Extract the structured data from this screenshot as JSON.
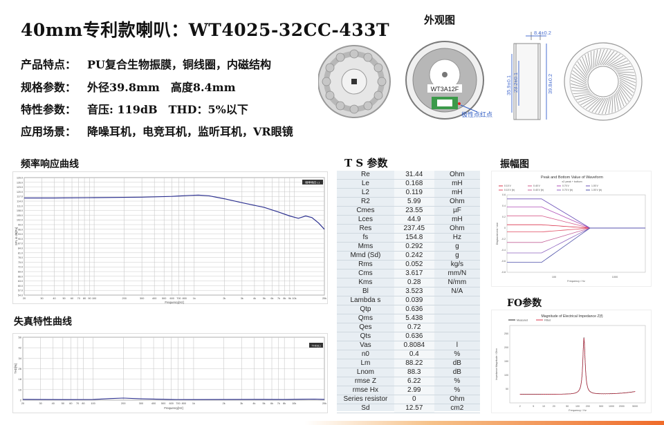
{
  "title": "40mm专利款喇叭：WT4025-32CC-433T",
  "specs": [
    {
      "key": "产品特点：",
      "value": "PU复合生物振膜，铜线圈，内磁结构"
    },
    {
      "key": "规格参数：",
      "value": "外径39.8mm　高度8.4mm"
    },
    {
      "key": "特性参数：",
      "value": "音压: 119dB　THD：5%以下"
    },
    {
      "key": "应用场景：",
      "value": "降噪耳机，电竞耳机，监听耳机，VR眼镜"
    }
  ],
  "views": {
    "title": "外观图",
    "label_text": "WT3A12F",
    "polarity_note": "极性点红点",
    "dims": {
      "height": "8.4±0.2",
      "d1": "35.9±0.1",
      "d2": "23.2±0.1",
      "d3": "39.8±0.2"
    }
  },
  "freq_response": {
    "title": "频率响应曲线",
    "legend": "频率响应 L1",
    "xlabel": "Frequency[Hz]",
    "ylabel": "SPL in dB[Pa]",
    "y_ticks": [
      "129.0",
      "126.0",
      "123.0",
      "120.0",
      "117.0",
      "114.0",
      "111.0",
      "108.0",
      "105.0",
      "102.0",
      "99.0",
      "96.0",
      "93.0",
      "90.0",
      "87.0",
      "84.0",
      "81.0",
      "78.0",
      "75.0",
      "72.0",
      "69.0",
      "66.0",
      "63.0",
      "60.0",
      "57.0",
      "54.0"
    ],
    "x_ticks": [
      "20",
      "30",
      "40",
      "50",
      "60",
      "70",
      "80",
      "90",
      "100",
      "200",
      "300",
      "400",
      "500",
      "600",
      "700",
      "800",
      "1k",
      "2k",
      "3k",
      "4k",
      "5k",
      "6k",
      "7k",
      "8k",
      "9k",
      "10k",
      "20k"
    ]
  },
  "thd": {
    "title": "失真特性曲线",
    "legend": "THD(L)",
    "xlabel": "Frequency[Hz]",
    "ylabel": "THD[%]",
    "y_ticks": [
      "50",
      "42",
      "34",
      "26",
      "18",
      "10",
      "2"
    ],
    "x_ticks": [
      "20",
      "30",
      "40",
      "50",
      "60",
      "70",
      "80",
      "100",
      "200",
      "300",
      "400",
      "500",
      "600",
      "700",
      "800",
      "1k",
      "2k",
      "3k",
      "4k",
      "5k",
      "6k",
      "7k",
      "8k",
      "10k",
      "20k"
    ]
  },
  "ts": {
    "title": "T S 参数",
    "rows": [
      [
        "Re",
        "31.44",
        "Ohm"
      ],
      [
        "Le",
        "0.168",
        "mH"
      ],
      [
        "L2",
        "0.119",
        "mH"
      ],
      [
        "R2",
        "5.99",
        "Ohm"
      ],
      [
        "Cmes",
        "23.55",
        "µF"
      ],
      [
        "Lces",
        "44.9",
        "mH"
      ],
      [
        "Res",
        "237.45",
        "Ohm"
      ],
      [
        "fs",
        "154.8",
        "Hz"
      ],
      [
        "Mms",
        "0.292",
        "g"
      ],
      [
        "Mmd (Sd)",
        "0.242",
        "g"
      ],
      [
        "Rms",
        "0.052",
        "kg/s"
      ],
      [
        "Cms",
        "3.617",
        "mm/N"
      ],
      [
        "Kms",
        "0.28",
        "N/mm"
      ],
      [
        "Bl",
        "3.523",
        "N/A"
      ],
      [
        "Lambda s",
        "0.039",
        ""
      ],
      [
        "Qtp",
        "0.636",
        ""
      ],
      [
        "Qms",
        "5.438",
        ""
      ],
      [
        "Qes",
        "0.72",
        ""
      ],
      [
        "Qts",
        "0.636",
        ""
      ],
      [
        "Vas",
        "0.8084",
        "l"
      ],
      [
        "n0",
        "0.4",
        "%"
      ],
      [
        "Lm",
        "88.22",
        "dB"
      ],
      [
        "Lnom",
        "88.3",
        "dB"
      ],
      [
        "rmse Z",
        "6.22",
        "%"
      ],
      [
        "rmse Hx",
        "2.99",
        "%"
      ],
      [
        "Series resistor",
        "0",
        "Ohm"
      ],
      [
        "Sd",
        "12.57",
        "cm2"
      ]
    ]
  },
  "amplitude": {
    "title": "振幅图",
    "chart_title": "Peak and Bottom Value of Waveform",
    "chart_subtitle": "x2 peak + bottom",
    "legend": [
      "0.10 V",
      "0.40 V",
      "0.70 V",
      "1.00 V",
      "0.10 V (b)",
      "0.40 V (b)",
      "0.70 V (b)",
      "1.00 V (b)"
    ],
    "ylabel": "Displacement / mm",
    "xlabel": "Frequency / Hz",
    "x_ticks": [
      "100",
      "1000"
    ],
    "y_ticks": [
      "0.6",
      "0.4",
      "0.2",
      "0",
      "-0.2",
      "-0.4",
      "-0.6",
      "-0.8"
    ]
  },
  "fo": {
    "title": "FO参数",
    "chart_title": "Magnitude of Electrical Impedance Z(f)",
    "legend": [
      "Measured",
      "Fitted"
    ],
    "ylabel": "Impedance Magnitude / Ohm",
    "xlabel": "Frequency / Hz",
    "y_ticks": [
      "250",
      "200",
      "150",
      "100",
      "50"
    ],
    "x_ticks": [
      "2",
      "5",
      "10",
      "20",
      "50",
      "100",
      "200",
      "500",
      "1000",
      "2000",
      "5000"
    ]
  },
  "colors": {
    "curve": "#2b2f8f",
    "grid": "#c8c8c8",
    "ts_bg": "#e8eef3",
    "accent": "#ef6b2a"
  }
}
